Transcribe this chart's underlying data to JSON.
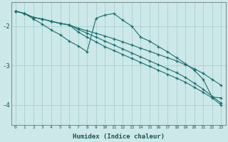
{
  "xlabel": "Humidex (Indice chaleur)",
  "bg_color": "#cce8e8",
  "grid_color": "#aacfcf",
  "line_color": "#1a7070",
  "xlim": [
    -0.5,
    23.5
  ],
  "ylim": [
    -4.5,
    -1.4
  ],
  "yticks": [
    -4,
    -3,
    -2
  ],
  "xticks": [
    0,
    1,
    2,
    3,
    4,
    5,
    6,
    7,
    8,
    9,
    10,
    11,
    12,
    13,
    14,
    15,
    16,
    17,
    18,
    19,
    20,
    21,
    22,
    23
  ],
  "line1_x": [
    0,
    1,
    2,
    3,
    4,
    5,
    6,
    7,
    8,
    9,
    10,
    11,
    12,
    13,
    14,
    15,
    16,
    17,
    18,
    19,
    20,
    21,
    22,
    23
  ],
  "line1_y": [
    -1.62,
    -1.68,
    -1.78,
    -1.82,
    -1.88,
    -1.93,
    -1.97,
    -2.05,
    -2.12,
    -2.18,
    -2.25,
    -2.32,
    -2.4,
    -2.48,
    -2.56,
    -2.64,
    -2.72,
    -2.8,
    -2.88,
    -2.98,
    -3.08,
    -3.2,
    -3.35,
    -3.5
  ],
  "line2_x": [
    0,
    1,
    2,
    3,
    4,
    5,
    6,
    7,
    8,
    9,
    10,
    11,
    12,
    13,
    14,
    15,
    16,
    17,
    18,
    19,
    20,
    21,
    22,
    23
  ],
  "line2_y": [
    -1.62,
    -1.68,
    -1.78,
    -1.82,
    -1.88,
    -1.93,
    -1.97,
    -2.08,
    -2.18,
    -2.28,
    -2.38,
    -2.48,
    -2.58,
    -2.68,
    -2.78,
    -2.88,
    -2.98,
    -3.08,
    -3.18,
    -3.3,
    -3.45,
    -3.6,
    -3.78,
    -3.95
  ],
  "line3_x": [
    0,
    1,
    2,
    3,
    4,
    5,
    6,
    7,
    8,
    9,
    10,
    11,
    12,
    13,
    14,
    15,
    16,
    17,
    18,
    19,
    20,
    21,
    22,
    23
  ],
  "line3_y": [
    -1.62,
    -1.68,
    -1.78,
    -1.82,
    -1.88,
    -1.93,
    -1.97,
    -2.15,
    -2.28,
    -2.4,
    -2.52,
    -2.62,
    -2.72,
    -2.82,
    -2.92,
    -3.02,
    -3.12,
    -3.22,
    -3.32,
    -3.42,
    -3.55,
    -3.68,
    -3.82,
    -4.0
  ],
  "line4_x": [
    0,
    1,
    2,
    3,
    4,
    5,
    6,
    7,
    8,
    9,
    10,
    11,
    12,
    13,
    14,
    15,
    16,
    17,
    18,
    19,
    20,
    21,
    22,
    23
  ],
  "line4_y": [
    -1.62,
    -1.68,
    -1.82,
    -1.95,
    -2.1,
    -2.22,
    -2.38,
    -2.5,
    -2.65,
    -1.8,
    -1.72,
    -1.68,
    -1.85,
    -2.0,
    -2.28,
    -2.38,
    -2.52,
    -2.65,
    -2.8,
    -2.95,
    -3.12,
    -3.35,
    -3.8,
    -3.82
  ]
}
